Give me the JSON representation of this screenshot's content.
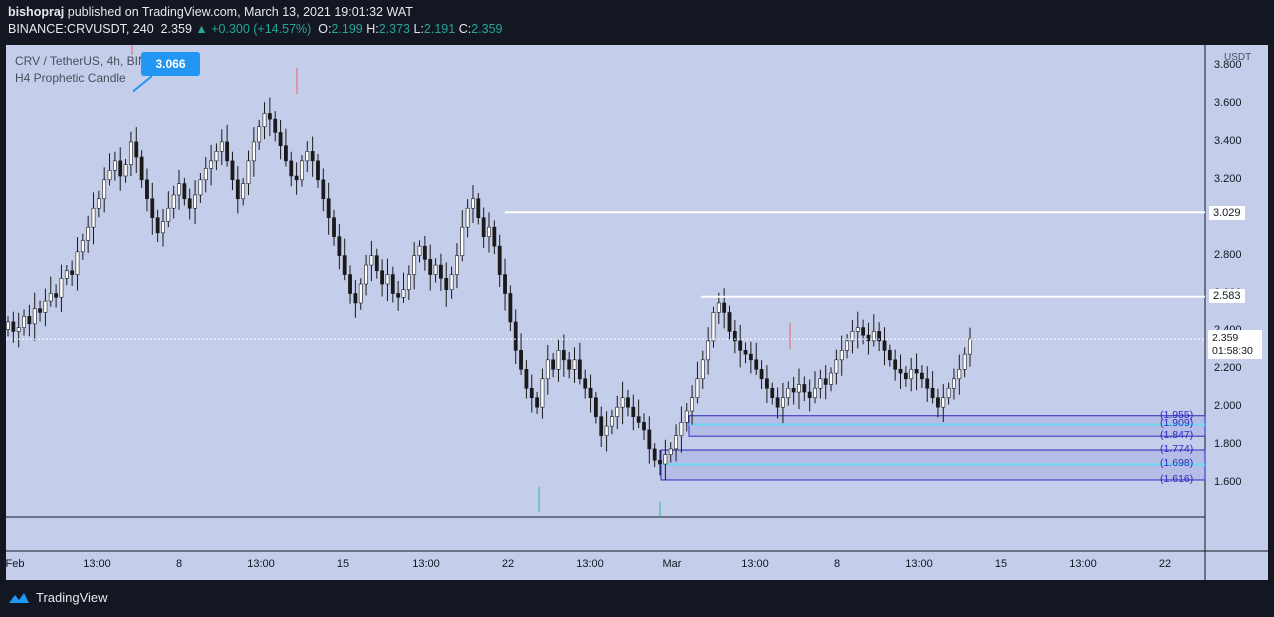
{
  "header": {
    "author": "bishopraj",
    "published_text": "published on TradingView.com, March 13, 2021 19:01:32 WAT",
    "symbol": "BINANCE:CRVUSDT, 240",
    "last": "2.359",
    "change": "▲ +0.300 (+14.57%)",
    "o_label": "O:",
    "o": "2.199",
    "h_label": "H:",
    "h": "2.373",
    "l_label": "L:",
    "l": "2.191",
    "c_label": "C:",
    "c": "2.359"
  },
  "legend": {
    "title": "CRV / TetherUS, 4h, BINANCE",
    "indicator": "H4 Prophetic Candle"
  },
  "callout": "3.066",
  "brand": "TradingView",
  "currency": "USDT",
  "current_price": {
    "value": "2.359",
    "countdown": "01:58:30"
  },
  "colors": {
    "bg": "#c4cdea",
    "up": "#ffffff",
    "down": "#1a1a1a",
    "zone": "#2e2bbd",
    "cyan": "#6fd8f2",
    "callout": "#2196f3"
  },
  "chart_data": {
    "type": "candlestick",
    "interval": "4h",
    "ylim": [
      1.39,
      3.86
    ],
    "y_ticks": [
      "3.800",
      "3.600",
      "3.400",
      "3.200",
      "3.000",
      "2.800",
      "2.600",
      "2.400",
      "2.200",
      "2.000",
      "1.800",
      "1.600"
    ],
    "x_ticks": [
      "Feb",
      "13:00",
      "8",
      "13:00",
      "15",
      "13:00",
      "22",
      "13:00",
      "Mar",
      "13:00",
      "8",
      "13:00",
      "15",
      "13:00",
      "22"
    ],
    "horizontal_levels": [
      {
        "price": 3.029,
        "label": "3.029"
      },
      {
        "price": 2.583,
        "label": "2.583"
      }
    ],
    "zones": [
      {
        "top": 1.955,
        "bottom": 1.847,
        "labels": [
          "(1.955)",
          "(1.909)",
          "(1.847)"
        ]
      },
      {
        "top": 1.774,
        "bottom": 1.616,
        "labels": [
          "(1.774)",
          "(1.698)",
          "(1.616)"
        ]
      }
    ],
    "annotations": [
      {
        "text": "3.066",
        "price": 3.666
      }
    ],
    "close_series": [
      2.45,
      2.4,
      2.42,
      2.48,
      2.44,
      2.52,
      2.5,
      2.56,
      2.6,
      2.58,
      2.68,
      2.72,
      2.7,
      2.82,
      2.88,
      2.95,
      3.05,
      3.1,
      3.2,
      3.25,
      3.3,
      3.22,
      3.28,
      3.4,
      3.32,
      3.2,
      3.1,
      3.0,
      2.92,
      2.98,
      3.05,
      3.12,
      3.18,
      3.1,
      3.05,
      3.12,
      3.2,
      3.26,
      3.3,
      3.35,
      3.4,
      3.3,
      3.2,
      3.1,
      3.18,
      3.3,
      3.4,
      3.48,
      3.55,
      3.52,
      3.45,
      3.38,
      3.3,
      3.22,
      3.2,
      3.3,
      3.35,
      3.3,
      3.2,
      3.1,
      3.0,
      2.9,
      2.8,
      2.7,
      2.6,
      2.55,
      2.65,
      2.75,
      2.8,
      2.72,
      2.65,
      2.7,
      2.6,
      2.58,
      2.62,
      2.7,
      2.8,
      2.85,
      2.78,
      2.7,
      2.75,
      2.68,
      2.62,
      2.7,
      2.8,
      2.95,
      3.05,
      3.1,
      3.0,
      2.9,
      2.95,
      2.85,
      2.7,
      2.6,
      2.45,
      2.3,
      2.2,
      2.1,
      2.05,
      2.0,
      2.15,
      2.25,
      2.2,
      2.3,
      2.25,
      2.2,
      2.25,
      2.15,
      2.1,
      2.05,
      1.95,
      1.85,
      1.9,
      1.95,
      2.0,
      2.05,
      2.0,
      1.95,
      1.92,
      1.88,
      1.78,
      1.72,
      1.7,
      1.75,
      1.78,
      1.85,
      1.92,
      1.98,
      2.05,
      2.15,
      2.25,
      2.35,
      2.5,
      2.55,
      2.5,
      2.4,
      2.35,
      2.3,
      2.28,
      2.25,
      2.2,
      2.15,
      2.1,
      2.05,
      2.0,
      2.05,
      2.1,
      2.08,
      2.12,
      2.08,
      2.05,
      2.1,
      2.15,
      2.12,
      2.18,
      2.25,
      2.3,
      2.35,
      2.4,
      2.42,
      2.38,
      2.35,
      2.4,
      2.35,
      2.3,
      2.25,
      2.2,
      2.18,
      2.15,
      2.2,
      2.18,
      2.15,
      2.1,
      2.05,
      2.0,
      2.05,
      2.1,
      2.15,
      2.2,
      2.28,
      2.36
    ]
  }
}
